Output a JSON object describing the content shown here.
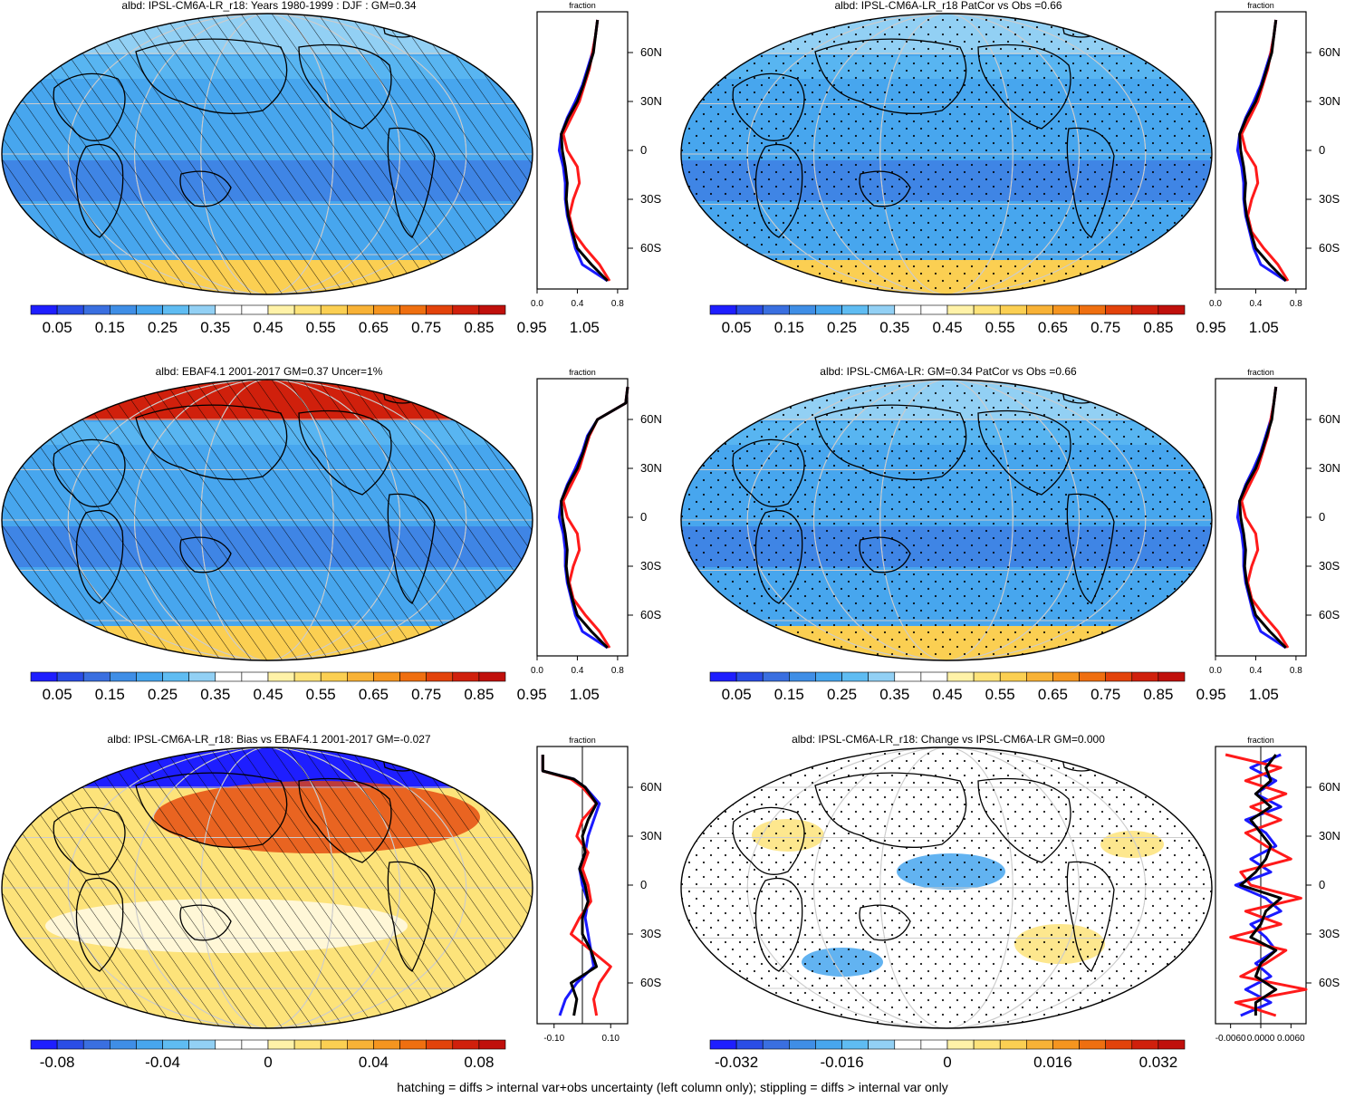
{
  "footer_note": "hatching = diffs > internal var+obs uncertainty (left column only); stippling = diffs > internal var only",
  "colors": {
    "palette_11": [
      "#1e1eff",
      "#2a4de6",
      "#3a6fe0",
      "#3f8ee6",
      "#47a6ee",
      "#5fbcf2",
      "#92d0f4",
      "#ffffff",
      "#ffffff",
      "#fff2a8",
      "#fde37a",
      "#fbcf52",
      "#f8b236",
      "#f5951f",
      "#ef6f10",
      "#e3430b",
      "#d0200c",
      "#c0100c"
    ],
    "profile_model": "#1a1aff",
    "profile_obs": "#ff1a1a",
    "profile_mean": "#000000"
  },
  "chart_data": [
    {
      "type": "heatmap",
      "title": "albd: IPSL-CM6A-LR_r18: Years 1980-1999 : DJF : GM=0.34",
      "overlay": "hatching",
      "colorbar_labels": [
        "0.05",
        "0.15",
        "0.25",
        "0.35",
        "0.45",
        "0.55",
        "0.65",
        "0.75",
        "0.85",
        "0.95",
        "1.05"
      ],
      "profile": {
        "title": "fraction",
        "xticks": [
          "0.0",
          "0.4",
          "0.8"
        ],
        "xlim": [
          0.0,
          0.9
        ],
        "yticks": [
          "60N",
          "30N",
          "0",
          "30S",
          "60S"
        ],
        "lat": [
          80,
          70,
          60,
          50,
          40,
          30,
          20,
          10,
          0,
          -10,
          -20,
          -30,
          -40,
          -50,
          -60,
          -70,
          -80
        ],
        "series_a": [
          0.6,
          0.58,
          0.55,
          0.5,
          0.45,
          0.38,
          0.3,
          0.24,
          0.22,
          0.26,
          0.28,
          0.28,
          0.3,
          0.34,
          0.38,
          0.45,
          0.7
        ],
        "series_b": [
          0.6,
          0.58,
          0.55,
          0.52,
          0.47,
          0.42,
          0.34,
          0.26,
          0.3,
          0.4,
          0.42,
          0.36,
          0.32,
          0.36,
          0.48,
          0.62,
          0.72
        ],
        "series_c": [
          0.6,
          0.58,
          0.56,
          0.51,
          0.46,
          0.4,
          0.31,
          0.24,
          0.25,
          0.28,
          0.3,
          0.29,
          0.31,
          0.35,
          0.4,
          0.54,
          0.7
        ]
      }
    },
    {
      "type": "heatmap",
      "title": "albd: IPSL-CM6A-LR_r18 PatCor vs Obs =0.66",
      "overlay": "stippling",
      "colorbar_labels": [
        "0.05",
        "0.15",
        "0.25",
        "0.35",
        "0.45",
        "0.55",
        "0.65",
        "0.75",
        "0.85",
        "0.95",
        "1.05"
      ],
      "profile": {
        "title": "fraction",
        "xticks": [
          "0.0",
          "0.4",
          "0.8"
        ],
        "xlim": [
          0.0,
          0.9
        ],
        "yticks": [
          "60N",
          "30N",
          "0",
          "30S",
          "60S"
        ],
        "lat": [
          80,
          70,
          60,
          50,
          40,
          30,
          20,
          10,
          0,
          -10,
          -20,
          -30,
          -40,
          -50,
          -60,
          -70,
          -80
        ],
        "series_a": [
          0.6,
          0.58,
          0.55,
          0.5,
          0.45,
          0.38,
          0.3,
          0.24,
          0.22,
          0.26,
          0.28,
          0.28,
          0.3,
          0.34,
          0.38,
          0.45,
          0.7
        ],
        "series_b": [
          0.6,
          0.58,
          0.55,
          0.52,
          0.47,
          0.42,
          0.34,
          0.26,
          0.3,
          0.4,
          0.42,
          0.36,
          0.32,
          0.36,
          0.48,
          0.62,
          0.72
        ],
        "series_c": [
          0.6,
          0.58,
          0.56,
          0.51,
          0.46,
          0.4,
          0.31,
          0.24,
          0.25,
          0.28,
          0.3,
          0.29,
          0.31,
          0.35,
          0.4,
          0.54,
          0.7
        ]
      }
    },
    {
      "type": "heatmap",
      "title": "albd: EBAF4.1 2001-2017 GM=0.37 Uncer=1%",
      "overlay": "hatching",
      "colorbar_labels": [
        "0.05",
        "0.15",
        "0.25",
        "0.35",
        "0.45",
        "0.55",
        "0.65",
        "0.75",
        "0.85",
        "0.95",
        "1.05"
      ],
      "profile": {
        "title": "fraction",
        "xticks": [
          "0.0",
          "0.4",
          "0.8"
        ],
        "xlim": [
          0.0,
          0.9
        ],
        "yticks": [
          "60N",
          "30N",
          "0",
          "30S",
          "60S"
        ],
        "lat": [
          80,
          70,
          60,
          50,
          40,
          30,
          20,
          10,
          0,
          -10,
          -20,
          -30,
          -40,
          -50,
          -60,
          -70,
          -80
        ],
        "series_a": [
          0.9,
          0.88,
          0.6,
          0.5,
          0.45,
          0.38,
          0.3,
          0.24,
          0.22,
          0.26,
          0.28,
          0.28,
          0.3,
          0.34,
          0.38,
          0.45,
          0.7
        ],
        "series_b": [
          0.9,
          0.88,
          0.6,
          0.52,
          0.47,
          0.42,
          0.34,
          0.26,
          0.3,
          0.4,
          0.42,
          0.36,
          0.32,
          0.36,
          0.48,
          0.62,
          0.72
        ],
        "series_c": [
          0.9,
          0.88,
          0.6,
          0.51,
          0.46,
          0.4,
          0.31,
          0.24,
          0.25,
          0.28,
          0.3,
          0.29,
          0.31,
          0.35,
          0.4,
          0.54,
          0.7
        ]
      }
    },
    {
      "type": "heatmap",
      "title": "albd: IPSL-CM6A-LR: GM=0.34 PatCor vs Obs =0.66",
      "overlay": "stippling",
      "colorbar_labels": [
        "0.05",
        "0.15",
        "0.25",
        "0.35",
        "0.45",
        "0.55",
        "0.65",
        "0.75",
        "0.85",
        "0.95",
        "1.05"
      ],
      "profile": {
        "title": "fraction",
        "xticks": [
          "0.0",
          "0.4",
          "0.8"
        ],
        "xlim": [
          0.0,
          0.9
        ],
        "yticks": [
          "60N",
          "30N",
          "0",
          "30S",
          "60S"
        ],
        "lat": [
          80,
          70,
          60,
          50,
          40,
          30,
          20,
          10,
          0,
          -10,
          -20,
          -30,
          -40,
          -50,
          -60,
          -70,
          -80
        ],
        "series_a": [
          0.6,
          0.58,
          0.55,
          0.5,
          0.45,
          0.38,
          0.3,
          0.24,
          0.22,
          0.26,
          0.28,
          0.28,
          0.3,
          0.34,
          0.38,
          0.45,
          0.7
        ],
        "series_b": [
          0.6,
          0.58,
          0.55,
          0.52,
          0.47,
          0.42,
          0.34,
          0.26,
          0.3,
          0.4,
          0.42,
          0.36,
          0.32,
          0.36,
          0.48,
          0.62,
          0.72
        ],
        "series_c": [
          0.6,
          0.58,
          0.56,
          0.51,
          0.46,
          0.4,
          0.31,
          0.24,
          0.25,
          0.28,
          0.3,
          0.29,
          0.31,
          0.35,
          0.4,
          0.54,
          0.7
        ]
      }
    },
    {
      "type": "heatmap",
      "title": "albd: IPSL-CM6A-LR_r18: Bias vs EBAF4.1 2001-2017 GM=-0.027",
      "overlay": "hatching",
      "colorbar_labels": [
        "-0.08",
        "-0.04",
        "0",
        "0.04",
        "0.08"
      ],
      "profile": {
        "title": "fraction",
        "xticks": [
          "-0.10",
          "0.10"
        ],
        "xlim": [
          -0.16,
          0.16
        ],
        "yticks": [
          "60N",
          "30N",
          "0",
          "30S",
          "60S"
        ],
        "lat": [
          80,
          70,
          65,
          60,
          50,
          40,
          30,
          20,
          10,
          0,
          -10,
          -20,
          -30,
          -40,
          -50,
          -60,
          -70,
          -80
        ],
        "series_a": [
          -0.14,
          -0.14,
          -0.03,
          0.01,
          0.06,
          0.04,
          0.02,
          0.01,
          -0.01,
          0.0,
          0.02,
          0.01,
          0.02,
          0.03,
          0.04,
          -0.02,
          -0.06,
          -0.08
        ],
        "series_b": [
          -0.14,
          -0.14,
          -0.04,
          0.0,
          0.05,
          0.0,
          -0.02,
          0.02,
          0.0,
          0.02,
          0.03,
          -0.01,
          -0.04,
          0.03,
          0.1,
          0.06,
          0.04,
          0.05
        ],
        "series_c": [
          -0.14,
          -0.14,
          -0.03,
          0.01,
          0.05,
          0.02,
          0.0,
          0.01,
          -0.01,
          0.01,
          0.02,
          0.0,
          0.0,
          0.03,
          0.05,
          -0.04,
          -0.02,
          -0.03
        ]
      }
    },
    {
      "type": "heatmap",
      "title": "albd: IPSL-CM6A-LR_r18: Change vs IPSL-CM6A-LR GM=0.000",
      "overlay": "stippling",
      "colorbar_labels": [
        "-0.032",
        "-0.016",
        "0",
        "0.016",
        "0.032"
      ],
      "profile": {
        "title": "fraction",
        "xticks": [
          "-0.0060",
          "0.0000",
          "0.0060"
        ],
        "xlim": [
          -0.009,
          0.009
        ],
        "yticks": [
          "60N",
          "30N",
          "0",
          "30S",
          "60S"
        ],
        "lat": [
          80,
          72,
          64,
          56,
          48,
          40,
          32,
          24,
          16,
          8,
          0,
          -8,
          -16,
          -24,
          -32,
          -40,
          -48,
          -56,
          -64,
          -72,
          -80
        ],
        "series_a": [
          0.004,
          -0.002,
          0.003,
          -0.001,
          0.004,
          -0.003,
          0.001,
          0.003,
          -0.002,
          0.002,
          -0.005,
          0.001,
          0.004,
          -0.002,
          0.001,
          0.003,
          -0.001,
          0.002,
          -0.003,
          0.002,
          -0.004
        ],
        "series_b": [
          -0.007,
          0.004,
          -0.003,
          0.005,
          -0.002,
          0.004,
          -0.003,
          0.001,
          0.006,
          -0.004,
          -0.002,
          0.008,
          -0.003,
          0.004,
          -0.006,
          0.005,
          0.001,
          -0.004,
          0.009,
          -0.005,
          0.003
        ],
        "series_c": [
          0.003,
          0.001,
          0.002,
          -0.001,
          0.002,
          -0.002,
          0.0,
          0.002,
          0.001,
          -0.001,
          -0.004,
          0.004,
          0.001,
          0.0,
          -0.002,
          0.003,
          0.0,
          -0.001,
          0.003,
          -0.001,
          -0.001
        ]
      }
    }
  ]
}
